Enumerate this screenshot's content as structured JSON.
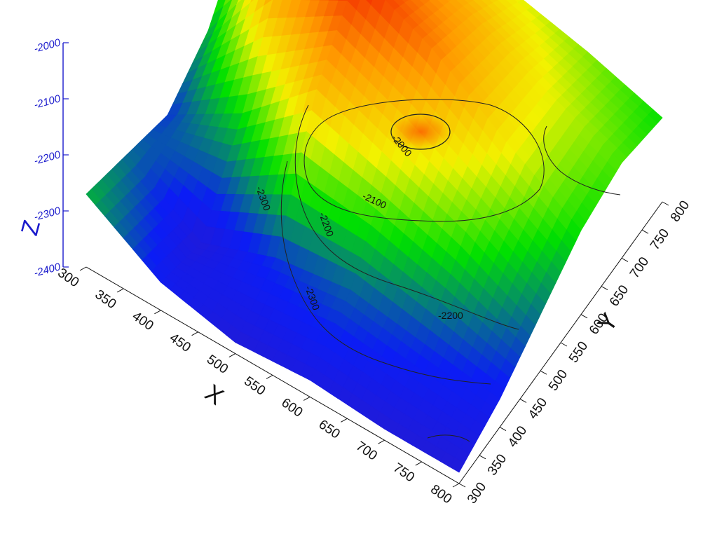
{
  "chart_data": {
    "type": "surface3d",
    "title": "",
    "x_axis": {
      "label": "X",
      "range": [
        300,
        800
      ],
      "ticks": [
        "300",
        "350",
        "400",
        "450",
        "500",
        "550",
        "600",
        "650",
        "700",
        "750",
        "800"
      ]
    },
    "y_axis": {
      "label": "Y",
      "range": [
        300,
        800
      ],
      "ticks": [
        "300",
        "350",
        "400",
        "450",
        "500",
        "550",
        "600",
        "650",
        "700",
        "750",
        "800"
      ]
    },
    "z_axis": {
      "label": "Z",
      "range": [
        -2400,
        -2000
      ],
      "ticks": [
        "-2000",
        "-2100",
        "-2200",
        "-2300",
        "-2400"
      ]
    },
    "x_values": [
      300,
      400,
      500,
      600,
      700,
      800
    ],
    "y_values": [
      300,
      400,
      500,
      600,
      700,
      800
    ],
    "z_grid": [
      [
        -2270,
        -2300,
        -2330,
        -2280,
        -2160,
        -2100
      ],
      [
        -2350,
        -2380,
        -2250,
        -2080,
        -2030,
        -2060
      ],
      [
        -2380,
        -2330,
        -2130,
        -2020,
        -2080,
        -2130
      ],
      [
        -2370,
        -2310,
        -2180,
        -2080,
        -2120,
        -2180
      ],
      [
        -2380,
        -2330,
        -2230,
        -2170,
        -2180,
        -2210
      ],
      [
        -2380,
        -2350,
        -2300,
        -2250,
        -2230,
        -2250
      ]
    ],
    "contour_levels": [
      "-2000",
      "-2100",
      "-2200",
      "-2300"
    ],
    "colormap": [
      "#2a1acc",
      "#0b1cf5",
      "#00e000",
      "#f2f200",
      "#ff9a00",
      "#f01000"
    ]
  },
  "colors": {
    "z_axis": "#1a1acc",
    "axis_line": "#111111",
    "contour": "#222222"
  }
}
